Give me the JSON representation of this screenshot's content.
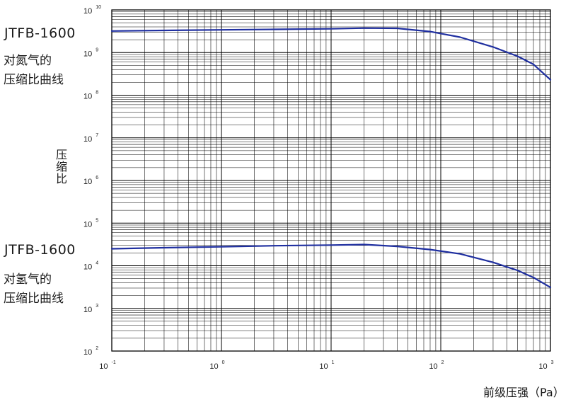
{
  "chart_data": {
    "type": "line",
    "x_scale": "log",
    "y_scale": "log",
    "xlim": [
      0.1,
      1000
    ],
    "ylim": [
      100,
      10000000000
    ],
    "grid": true,
    "xlabel": "前级压强（Pa）",
    "ylabel": "压缩比",
    "x_ticks": [
      {
        "value": 0.1,
        "base": "10",
        "exp": "-1"
      },
      {
        "value": 1,
        "base": "10",
        "exp": "0"
      },
      {
        "value": 10,
        "base": "10",
        "exp": "1"
      },
      {
        "value": 100,
        "base": "10",
        "exp": "2"
      },
      {
        "value": 1000,
        "base": "10",
        "exp": "3"
      }
    ],
    "y_ticks": [
      {
        "value": 100,
        "base": "10",
        "exp": "2"
      },
      {
        "value": 1000,
        "base": "10",
        "exp": "3"
      },
      {
        "value": 10000,
        "base": "10",
        "exp": "4"
      },
      {
        "value": 100000,
        "base": "10",
        "exp": "5"
      },
      {
        "value": 1000000,
        "base": "10",
        "exp": "6"
      },
      {
        "value": 10000000,
        "base": "10",
        "exp": "7"
      },
      {
        "value": 100000000,
        "base": "10",
        "exp": "8"
      },
      {
        "value": 1000000000,
        "base": "10",
        "exp": "9"
      },
      {
        "value": 10000000000,
        "base": "10",
        "exp": "10"
      }
    ],
    "series": [
      {
        "model": "JTFB-1600",
        "gas_label": "对氮气的",
        "suffix_label": "压缩比曲线",
        "color": "#1f2fa0",
        "x": [
          0.1,
          0.3,
          1,
          3,
          10,
          20,
          40,
          80,
          150,
          300,
          500,
          700,
          1000
        ],
        "y": [
          3200000000.0,
          3300000000.0,
          3400000000.0,
          3500000000.0,
          3600000000.0,
          3750000000.0,
          3700000000.0,
          3100000000.0,
          2300000000.0,
          1350000000.0,
          820000000.0,
          530000000.0,
          230000000.0
        ]
      },
      {
        "model": "JTFB-1600",
        "gas_label": "对氢气的",
        "suffix_label": "压缩比曲线",
        "color": "#1f2fa0",
        "x": [
          0.1,
          0.3,
          1,
          3,
          10,
          20,
          40,
          80,
          150,
          300,
          500,
          700,
          1000
        ],
        "y": [
          25000,
          26500,
          28000,
          29500,
          30500,
          31500,
          28500,
          24000,
          19000,
          12000,
          7800,
          5300,
          3100
        ]
      }
    ]
  }
}
